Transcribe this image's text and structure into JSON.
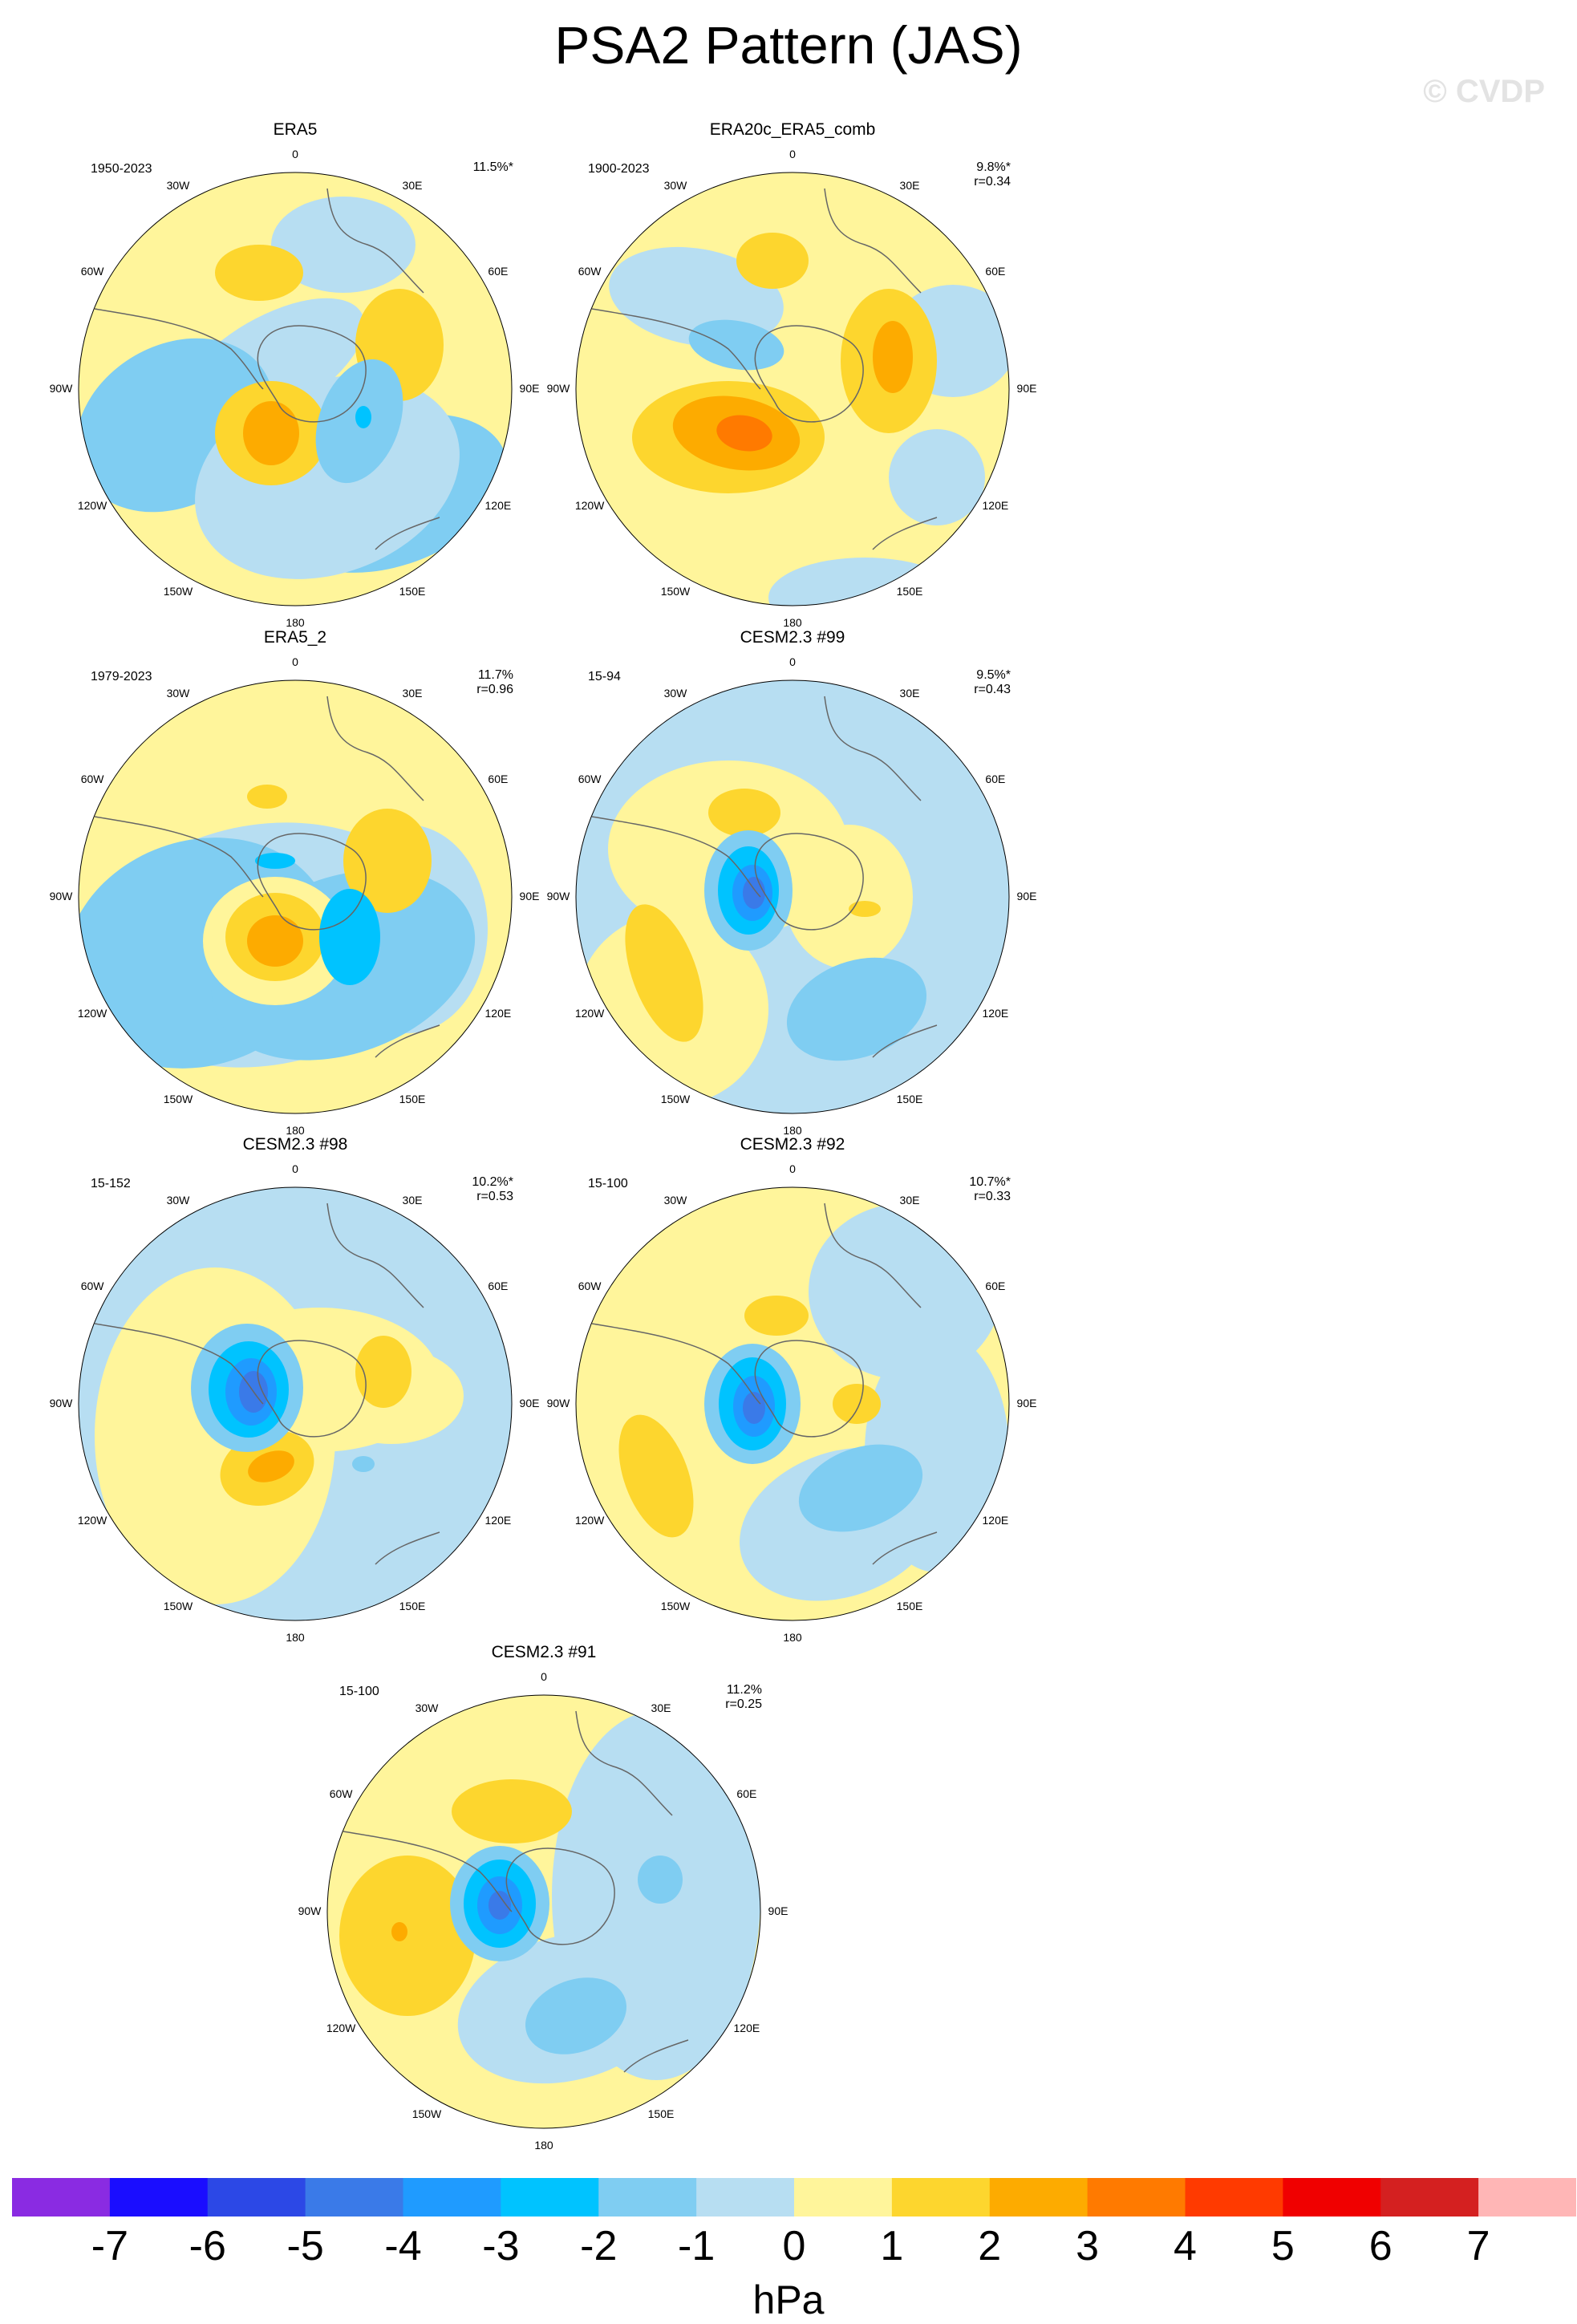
{
  "title": "PSA2 Pattern (JAS)",
  "watermark": "© CVDP",
  "longitude_labels": [
    "0",
    "30E",
    "60E",
    "90E",
    "120E",
    "150E",
    "180",
    "150W",
    "120W",
    "90W",
    "60W",
    "30W"
  ],
  "panels": [
    {
      "name": "ERA5",
      "period": "1950-2023",
      "pct": "11.5%*",
      "r": ""
    },
    {
      "name": "ERA20c_ERA5_comb",
      "period": "1900-2023",
      "pct": "9.8%*",
      "r": "r=0.34"
    },
    {
      "name": "ERA5_2",
      "period": "1979-2023",
      "pct": "11.7%",
      "r": "r=0.96"
    },
    {
      "name": "CESM2.3 #99",
      "period": "15-94",
      "pct": "9.5%*",
      "r": "r=0.43"
    },
    {
      "name": "CESM2.3 #98",
      "period": "15-152",
      "pct": "10.2%*",
      "r": "r=0.53"
    },
    {
      "name": "CESM2.3 #92",
      "period": "15-100",
      "pct": "10.7%*",
      "r": "r=0.33"
    },
    {
      "name": "CESM2.3 #91",
      "period": "15-100",
      "pct": "11.2%",
      "r": "r=0.25"
    }
  ],
  "colorbar": {
    "units": "hPa",
    "ticks": [
      "-7",
      "-6",
      "-5",
      "-4",
      "-3",
      "-2",
      "-1",
      "0",
      "1",
      "2",
      "3",
      "4",
      "5",
      "6",
      "7"
    ],
    "colors": [
      "#8a2be2",
      "#1a0dff",
      "#2c48e6",
      "#3a7ae8",
      "#1f9bff",
      "#00c3ff",
      "#7fcdf2",
      "#b7def2",
      "#fff59b",
      "#fdd62e",
      "#fdab00",
      "#ff7a00",
      "#ff3a00",
      "#f00000",
      "#d42020",
      "#ffb6b6"
    ]
  }
}
